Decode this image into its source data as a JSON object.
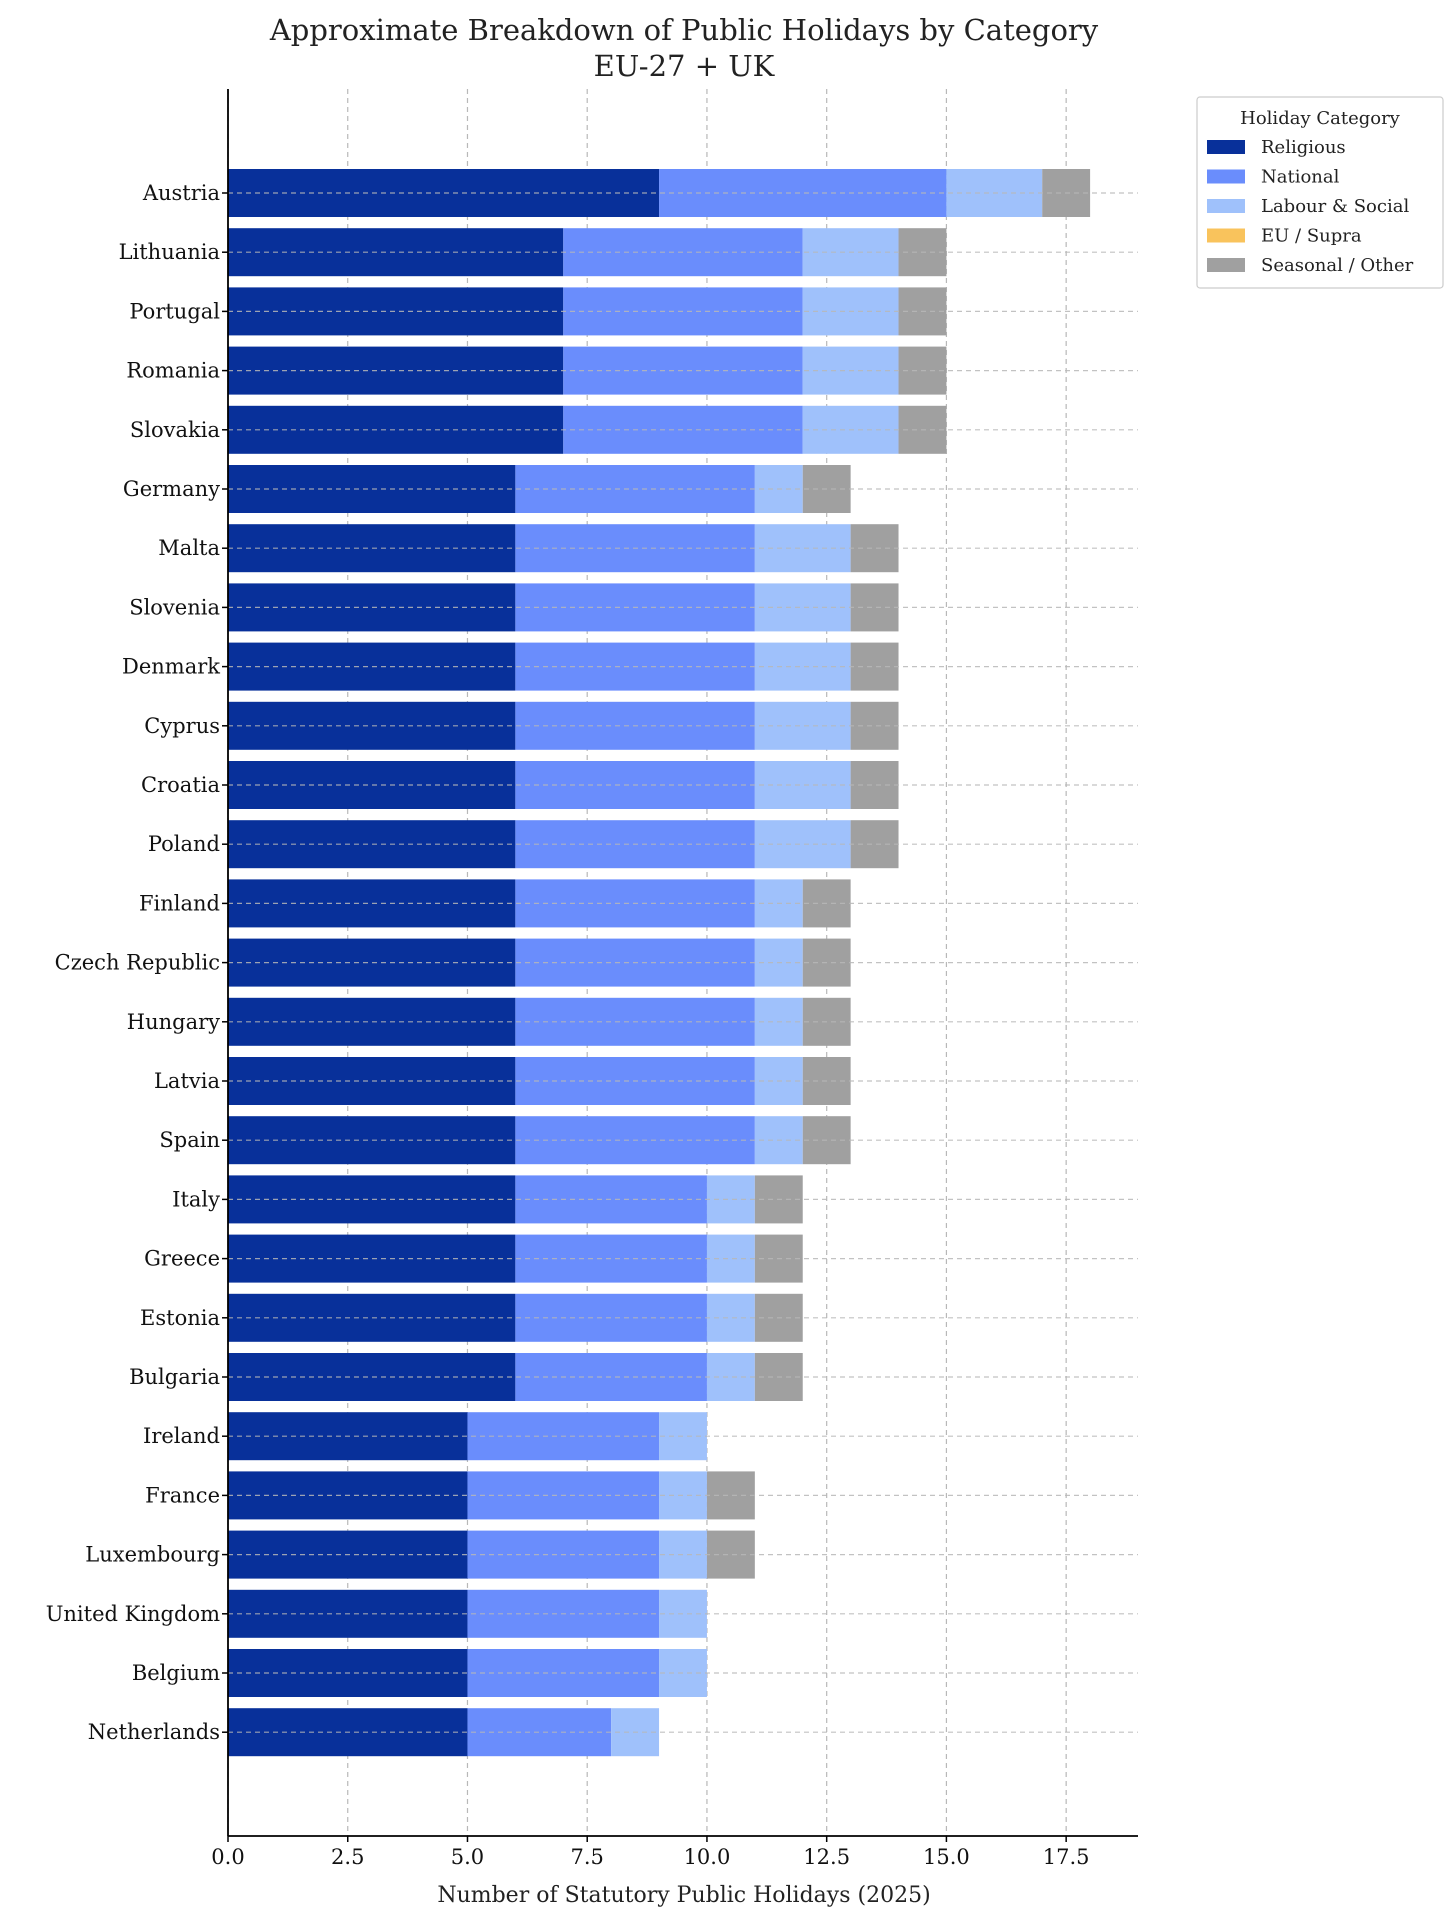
{
  "chart_data": {
    "type": "bar",
    "orientation": "horizontal",
    "stacked": true,
    "title": "Approximate Breakdown of Public Holidays by Category",
    "subtitle": "EU-27 + UK",
    "xlabel": "Number of Statutory Public Holidays (2025)",
    "ylabel": "",
    "xlim": [
      0,
      19
    ],
    "xticks": [
      0,
      2.5,
      5,
      7.5,
      10,
      12.5,
      15,
      17.5
    ],
    "xtick_labels": [
      "0.0",
      "2.5",
      "5.0",
      "7.5",
      "10.0",
      "12.5",
      "15.0",
      "17.5"
    ],
    "grid": true,
    "legend": {
      "title": "Holiday Category",
      "position": "outside-top-right"
    },
    "categories": [
      "Austria",
      "Lithuania",
      "Portugal",
      "Romania",
      "Slovakia",
      "Germany",
      "Malta",
      "Slovenia",
      "Denmark",
      "Cyprus",
      "Croatia",
      "Poland",
      "Finland",
      "Czech Republic",
      "Hungary",
      "Latvia",
      "Spain",
      "Italy",
      "Greece",
      "Estonia",
      "Bulgaria",
      "Ireland",
      "France",
      "Luxembourg",
      "United Kingdom",
      "Belgium",
      "Netherlands"
    ],
    "series": [
      {
        "name": "Religious",
        "color": "#08309a",
        "values": [
          9,
          7,
          7,
          7,
          7,
          6,
          6,
          6,
          6,
          6,
          6,
          6,
          6,
          6,
          6,
          6,
          6,
          6,
          6,
          6,
          6,
          5,
          5,
          5,
          5,
          5,
          5
        ]
      },
      {
        "name": "National",
        "color": "#6a8dfc",
        "values": [
          6,
          5,
          5,
          5,
          5,
          5,
          5,
          5,
          5,
          5,
          5,
          5,
          5,
          5,
          5,
          5,
          5,
          4,
          4,
          4,
          4,
          4,
          4,
          4,
          4,
          4,
          3
        ]
      },
      {
        "name": "Labour & Social",
        "color": "#9fc1fb",
        "values": [
          2,
          2,
          2,
          2,
          2,
          1,
          2,
          2,
          2,
          2,
          2,
          2,
          1,
          1,
          1,
          1,
          1,
          1,
          1,
          1,
          1,
          1,
          1,
          1,
          1,
          1,
          1
        ]
      },
      {
        "name": "EU / Supra",
        "color": "#f9c35c",
        "values": [
          0,
          0,
          0,
          0,
          0,
          0,
          0,
          0,
          0,
          0,
          0,
          0,
          0,
          0,
          0,
          0,
          0,
          0,
          0,
          0,
          0,
          0,
          0,
          0,
          0,
          0,
          0
        ]
      },
      {
        "name": "Seasonal / Other",
        "color": "#a0a0a0",
        "values": [
          1,
          1,
          1,
          1,
          1,
          1,
          1,
          1,
          1,
          1,
          1,
          1,
          1,
          1,
          1,
          1,
          1,
          1,
          1,
          1,
          1,
          0,
          1,
          1,
          0,
          0,
          0
        ]
      }
    ]
  }
}
